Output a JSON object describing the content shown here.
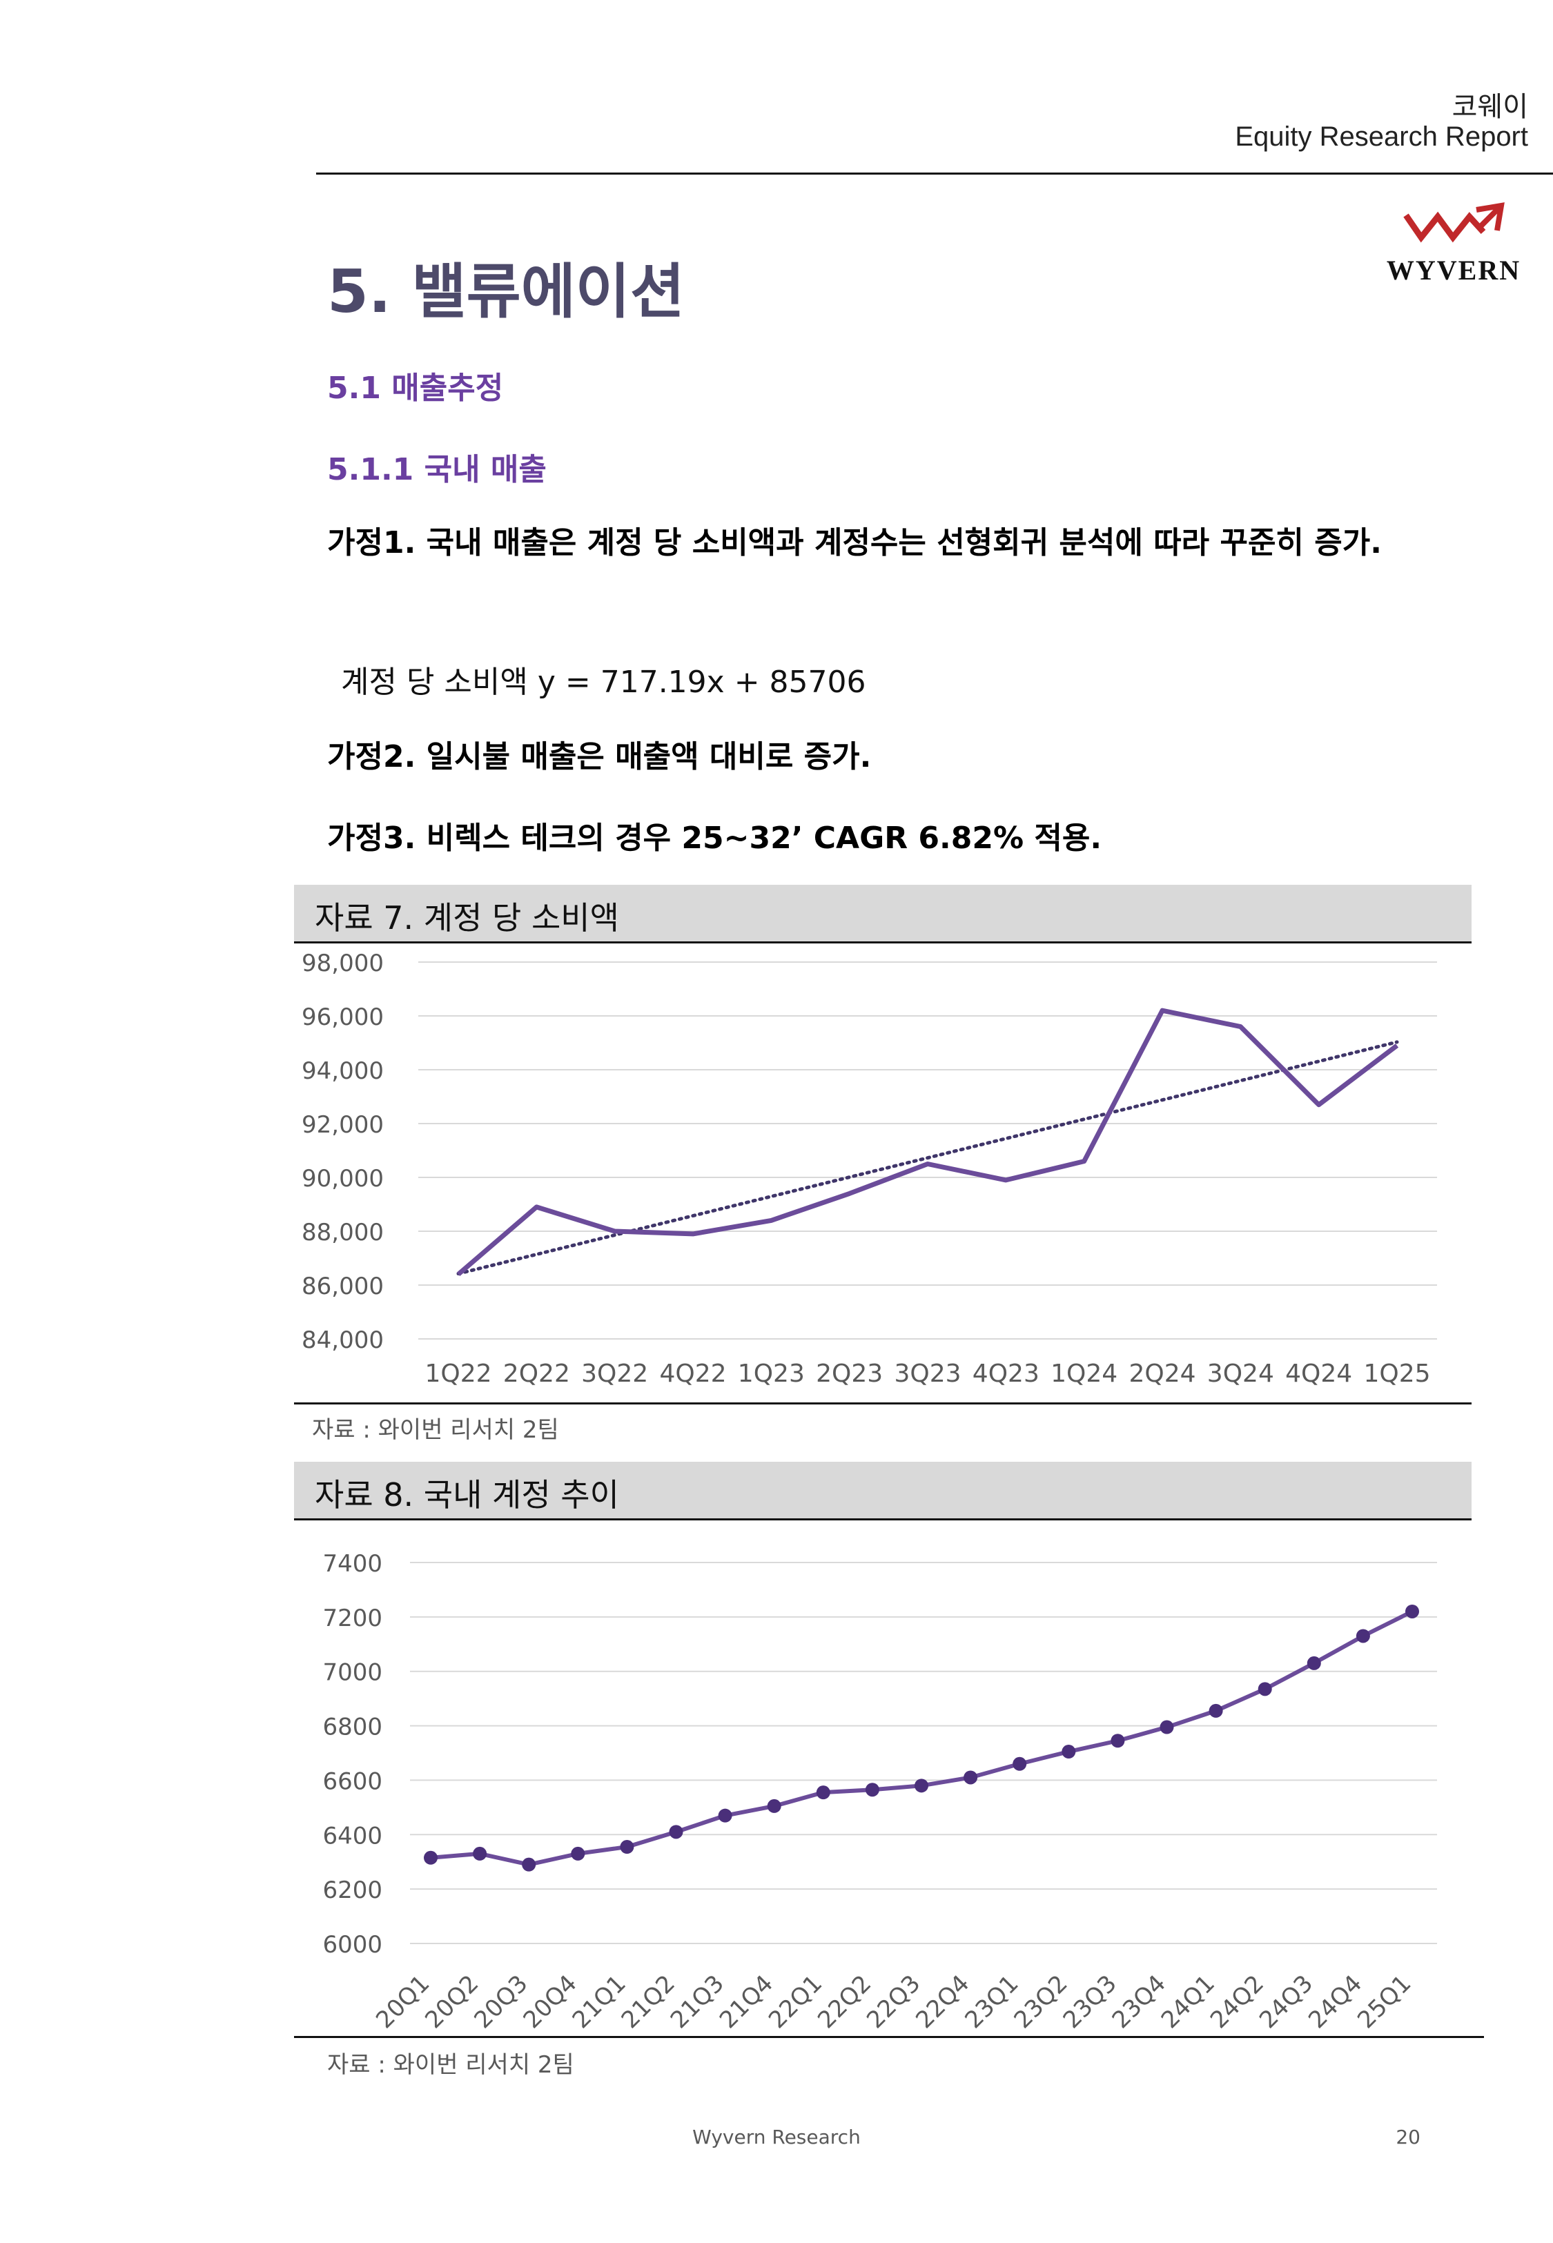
{
  "header": {
    "company": "코웨이",
    "report_type": "Equity Research Report"
  },
  "logo": {
    "text": "WYVERN"
  },
  "section_title": "5. 밸류에이션",
  "subsection": "5.1 매출추정",
  "subsubsection": "5.1.1 국내 매출",
  "assumptions": {
    "a1": "가정1. 국내 매출은 계정 당 소비액과 계정수는 선형회귀 분석에 따라 꾸준히 증가.",
    "formula": "계정 당 소비액 y = 717.19x + 85706",
    "a2": "가정2. 일시불 매출은 매출액 대비로 증가.",
    "a3": "가정3. 비렉스 테크의 경우 25~32’ CAGR 6.82% 적용."
  },
  "figure7": {
    "title": "자료 7. 계정 당 소비액",
    "source": "자료 :  와이번 리서치 2팀"
  },
  "figure8": {
    "title": "자료 8. 국내 계정 추이",
    "source": "자료 :  와이번 리서치 2팀"
  },
  "footer": {
    "center": "Wyvern Research",
    "page": "20"
  },
  "colors": {
    "series": "#6b4c9a",
    "trendline": "#3f3569",
    "heading": "#6a3fa0",
    "title": "#4d4a6a",
    "grid": "#d9d9d9",
    "bar": "#d9d9d9"
  },
  "chart_data": [
    {
      "type": "line",
      "title": "자료 7. 계정 당 소비액",
      "categories": [
        "1Q22",
        "2Q22",
        "3Q22",
        "4Q22",
        "1Q23",
        "2Q23",
        "3Q23",
        "4Q23",
        "1Q24",
        "2Q24",
        "3Q24",
        "4Q24",
        "1Q25"
      ],
      "values": [
        86400,
        88900,
        88000,
        87900,
        88400,
        89400,
        90500,
        89900,
        90600,
        96200,
        95600,
        92700,
        94900
      ],
      "trendline": {
        "type": "linear",
        "dotted": true,
        "slope": 717.19,
        "intercept": 85706
      },
      "ylim": [
        84000,
        98000
      ],
      "yticks": [
        "98,000",
        "96,000",
        "94,000",
        "92,000",
        "90,000",
        "88,000",
        "86,000",
        "84,000"
      ],
      "ytick_values": [
        98000,
        96000,
        94000,
        92000,
        90000,
        88000,
        86000,
        84000
      ],
      "grid": true,
      "legend": "none"
    },
    {
      "type": "line",
      "title": "자료 8. 국내 계정 추이",
      "categories": [
        "20Q1",
        "20Q2",
        "20Q3",
        "20Q4",
        "21Q1",
        "21Q2",
        "21Q3",
        "21Q4",
        "22Q1",
        "22Q2",
        "22Q3",
        "22Q4",
        "23Q1",
        "23Q2",
        "23Q3",
        "23Q4",
        "24Q1",
        "24Q2",
        "24Q3",
        "24Q4",
        "25Q1"
      ],
      "values": [
        6315,
        6330,
        6290,
        6330,
        6355,
        6410,
        6470,
        6505,
        6555,
        6565,
        6580,
        6610,
        6660,
        6705,
        6745,
        6795,
        6855,
        6935,
        7030,
        7130,
        7220
      ],
      "markers": true,
      "ylim": [
        6000,
        7400
      ],
      "yticks": [
        "7400",
        "7200",
        "7000",
        "6800",
        "6600",
        "6400",
        "6200",
        "6000"
      ],
      "ytick_values": [
        7400,
        7200,
        7000,
        6800,
        6600,
        6400,
        6200,
        6000
      ],
      "grid": true,
      "legend": "none"
    }
  ]
}
